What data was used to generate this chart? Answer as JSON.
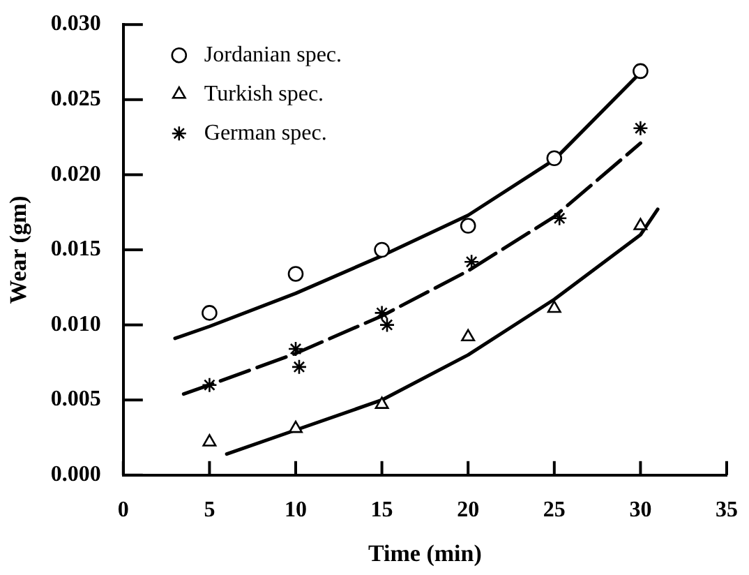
{
  "chart_data": {
    "type": "scatter",
    "xlabel": "Time (min)",
    "ylabel": "Wear (gm)",
    "xlim": [
      0,
      35
    ],
    "xticks": [
      0,
      5,
      10,
      15,
      20,
      25,
      30,
      35
    ],
    "ylim": [
      0,
      0.03
    ],
    "yticks": [
      {
        "value": 0,
        "label": "0.000"
      },
      {
        "value": 0.005,
        "label": "0.005"
      },
      {
        "value": 0.01,
        "label": "0.010"
      },
      {
        "value": 0.015,
        "label": "0.015"
      },
      {
        "value": 0.02,
        "label": "0.020"
      },
      {
        "value": 0.025,
        "label": "0.025"
      },
      {
        "value": 0.03,
        "label": "0.030"
      }
    ],
    "legend": "top left",
    "grid": false,
    "series": [
      {
        "name": "Jordanian spec.",
        "color": "#000000",
        "marker": "circle",
        "x": [
          5,
          10,
          15,
          20,
          25,
          30
        ],
        "values": [
          0.0108,
          0.0134,
          0.015,
          0.0166,
          0.0211,
          0.0269
        ]
      },
      {
        "name": "Turkish spec.",
        "color": "#000000",
        "marker": "triangle",
        "x": [
          5,
          10,
          15,
          20,
          25,
          30
        ],
        "values": [
          0.0022,
          0.0031,
          0.0047,
          0.0092,
          0.0111,
          0.0166
        ]
      },
      {
        "name": "German spec.",
        "color": "#000000",
        "marker": "cross",
        "x": [
          5,
          10,
          10.2,
          15,
          15.3,
          20.2,
          25.3,
          30
        ],
        "values": [
          0.006,
          0.0084,
          0.0072,
          0.0108,
          0.01,
          0.0142,
          0.0171,
          0.0231
        ]
      },
      {
        "type": "line",
        "color": "#000000",
        "marker": "none",
        "line_style": "solid",
        "x": [
          3,
          5,
          10,
          15,
          20,
          25,
          30
        ],
        "values": [
          0.0091,
          0.0099,
          0.0121,
          0.0146,
          0.0173,
          0.021,
          0.0268
        ]
      },
      {
        "type": "line",
        "color": "#000000",
        "marker": "none",
        "line_style": "dashed",
        "x": [
          3.5,
          5,
          10,
          15,
          20,
          25,
          30
        ],
        "values": [
          0.0054,
          0.006,
          0.0081,
          0.0106,
          0.0136,
          0.0172,
          0.0221
        ]
      },
      {
        "type": "line",
        "color": "#000000",
        "marker": "none",
        "line_style": "solid",
        "x": [
          6,
          10,
          15,
          20,
          25,
          30,
          31
        ],
        "values": [
          0.0014,
          0.003,
          0.005,
          0.008,
          0.0117,
          0.016,
          0.0177
        ]
      }
    ]
  }
}
